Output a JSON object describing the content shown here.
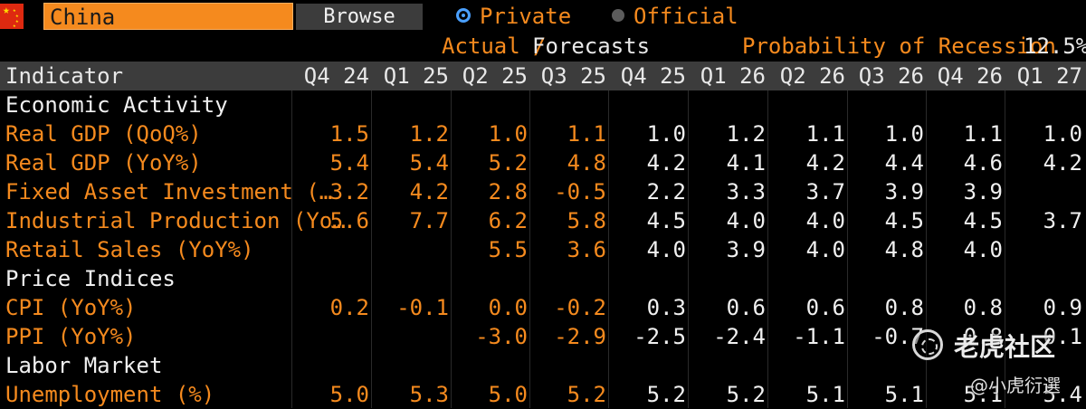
{
  "country": {
    "name": "China"
  },
  "toolbar": {
    "browse_label": "Browse"
  },
  "source_options": {
    "private_label": "Private",
    "official_label": "Official",
    "selected": "Private"
  },
  "subheader": {
    "actual_label": "Actual /",
    "forecast_label": "Forecasts",
    "recession_label": "Probability of Recession",
    "recession_value": "12.5%"
  },
  "table": {
    "indicator_header": "Indicator",
    "periods": [
      "Q4 24",
      "Q1 25",
      "Q2 25",
      "Q3 25",
      "Q4 25",
      "Q1 26",
      "Q2 26",
      "Q3 26",
      "Q4 26",
      "Q1 27"
    ],
    "rows": [
      {
        "type": "section",
        "label": "Economic Activity"
      },
      {
        "type": "data",
        "label": "Real GDP (QoQ%)",
        "values": [
          "1.5",
          "1.2",
          "1.0",
          "1.1",
          "1.0",
          "1.2",
          "1.1",
          "1.0",
          "1.1",
          "1.0"
        ]
      },
      {
        "type": "data",
        "label": "Real GDP (YoY%)",
        "values": [
          "5.4",
          "5.4",
          "5.2",
          "4.8",
          "4.2",
          "4.1",
          "4.2",
          "4.4",
          "4.6",
          "4.2"
        ]
      },
      {
        "type": "data",
        "label": "Fixed Asset Investment (…",
        "values": [
          "3.2",
          "4.2",
          "2.8",
          "-0.5",
          "2.2",
          "3.3",
          "3.7",
          "3.9",
          "3.9",
          ""
        ]
      },
      {
        "type": "data",
        "label": "Industrial Production (Yo…",
        "values": [
          "5.6",
          "7.7",
          "6.2",
          "5.8",
          "4.5",
          "4.0",
          "4.0",
          "4.5",
          "4.5",
          "3.7"
        ]
      },
      {
        "type": "data",
        "label": "Retail Sales (YoY%)",
        "values": [
          "",
          "",
          "5.5",
          "3.6",
          "4.0",
          "3.9",
          "4.0",
          "4.8",
          "4.0",
          ""
        ]
      },
      {
        "type": "section",
        "label": "Price Indices"
      },
      {
        "type": "data",
        "label": "CPI (YoY%)",
        "values": [
          "0.2",
          "-0.1",
          "0.0",
          "-0.2",
          "0.3",
          "0.6",
          "0.6",
          "0.8",
          "0.8",
          "0.9"
        ]
      },
      {
        "type": "data",
        "label": "PPI (YoY%)",
        "values": [
          "",
          "",
          "-3.0",
          "-2.9",
          "-2.5",
          "-2.4",
          "-1.1",
          "-0.7",
          "0.8",
          "0.1"
        ]
      },
      {
        "type": "section",
        "label": "Labor Market"
      },
      {
        "type": "data",
        "label": "Unemployment (%)",
        "values": [
          "5.0",
          "5.3",
          "5.0",
          "5.2",
          "5.2",
          "5.2",
          "5.1",
          "5.1",
          "5.1",
          "5.4"
        ]
      }
    ]
  },
  "watermark": {
    "brand": "老虎社区",
    "user": "@小虎衍選"
  },
  "colors": {
    "accent": "#f58a1e",
    "background": "#000000",
    "header_bg": "#3c3c3c",
    "radio_selected": "#4aa0ff"
  },
  "icons": {
    "flag": "china-flag-icon",
    "radio_on": "radio-selected-icon",
    "radio_off": "radio-unselected-icon"
  }
}
